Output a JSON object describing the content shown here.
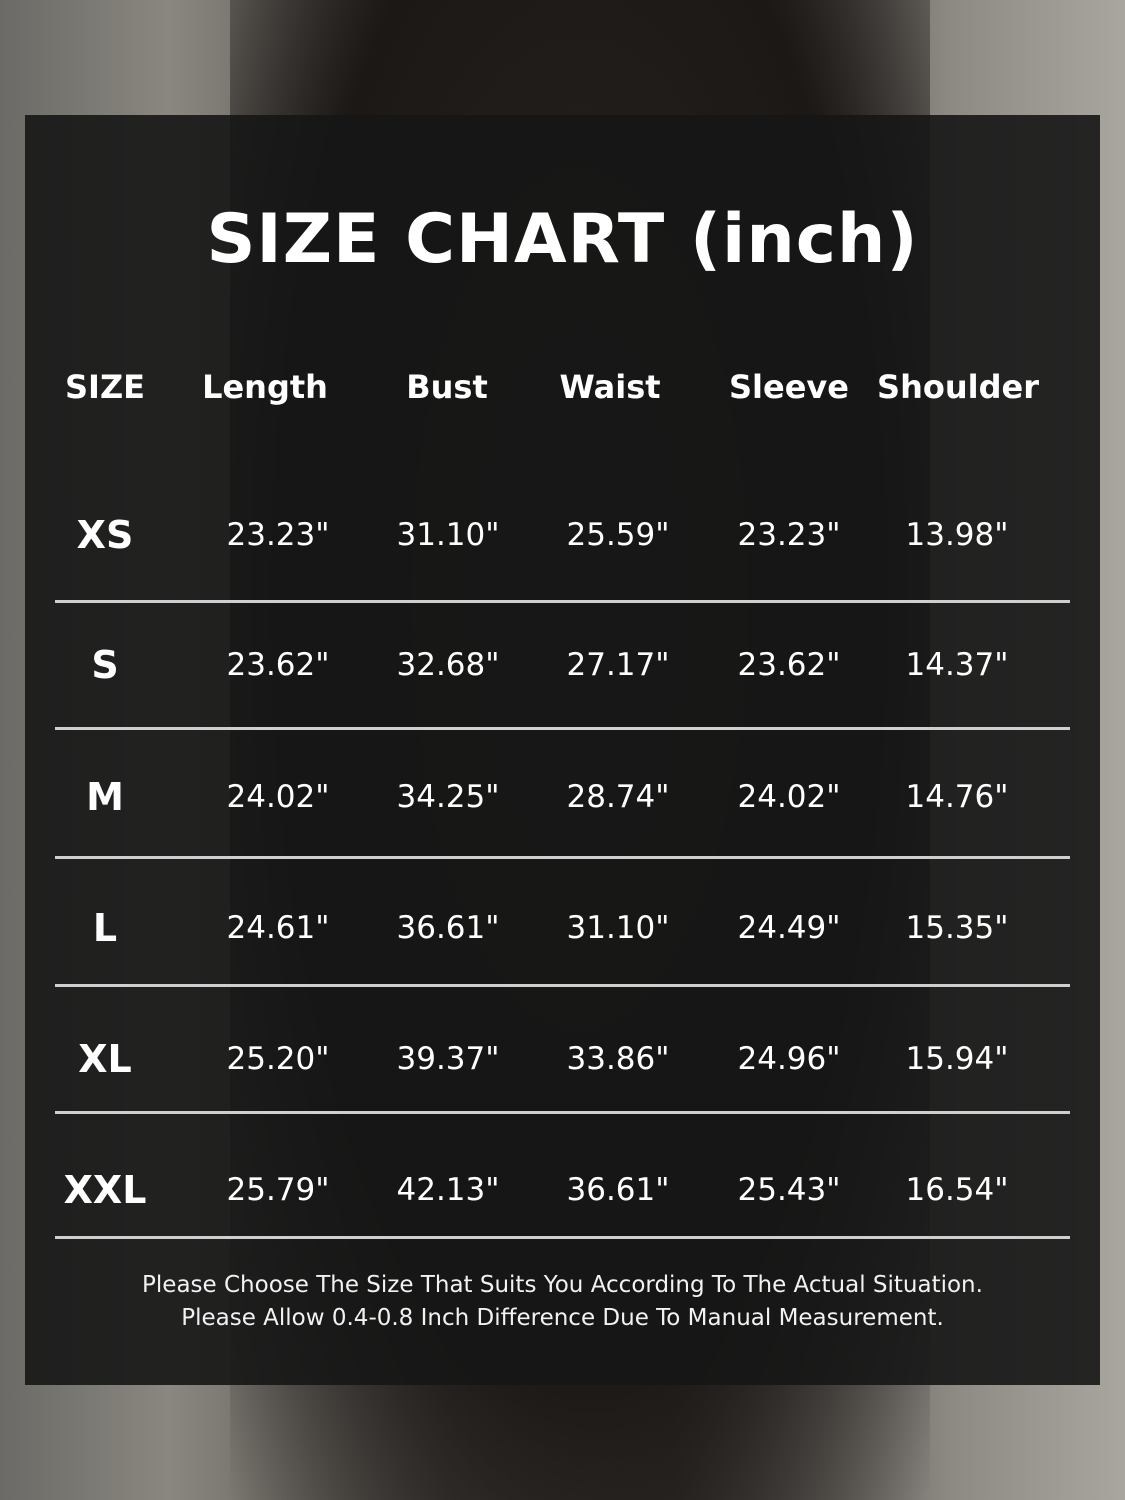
{
  "chart_data": {
    "type": "table",
    "title": "SIZE CHART (inch)",
    "columns": [
      "SIZE",
      "Length",
      "Bust",
      "Waist",
      "Sleeve",
      "Shoulder"
    ],
    "rows": [
      [
        "XS",
        "23.23\"",
        "31.10\"",
        "25.59\"",
        "23.23\"",
        "13.98\""
      ],
      [
        "S",
        "23.62\"",
        "32.68\"",
        "27.17\"",
        "23.62\"",
        "14.37\""
      ],
      [
        "M",
        "24.02\"",
        "34.25\"",
        "28.74\"",
        "24.02\"",
        "14.76\""
      ],
      [
        "L",
        "24.61\"",
        "36.61\"",
        "31.10\"",
        "24.49\"",
        "15.35\""
      ],
      [
        "XL",
        "25.20\"",
        "39.37\"",
        "33.86\"",
        "24.96\"",
        "15.94\""
      ],
      [
        "XXL",
        "25.79\"",
        "42.13\"",
        "36.61\"",
        "25.43\"",
        "16.54\""
      ]
    ],
    "notes": [
      "Please Choose The Size That Suits You According To The Actual Situation.",
      "Please Allow 0.4-0.8 Inch Difference Due To Manual Measurement."
    ]
  }
}
